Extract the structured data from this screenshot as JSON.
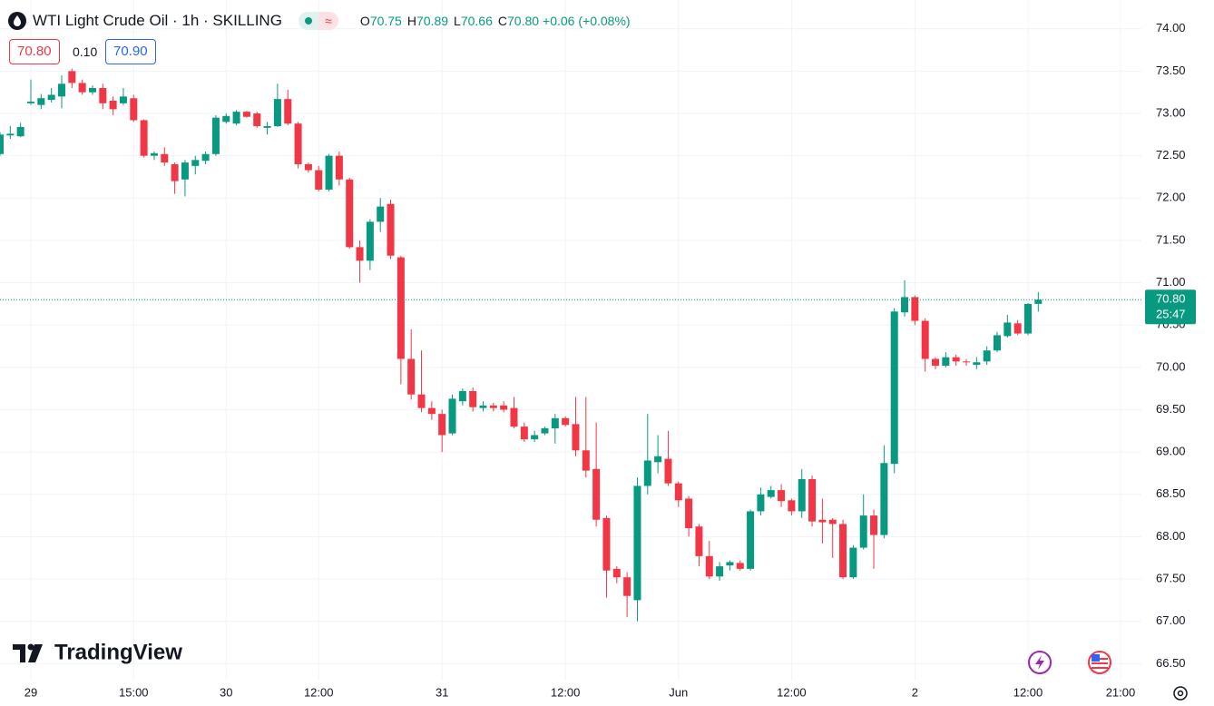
{
  "header": {
    "symbol": "WTI Light Crude Oil · 1h · SKILLING",
    "legend": [
      {
        "label": "O",
        "value": "70.75"
      },
      {
        "label": "H",
        "value": "70.89"
      },
      {
        "label": "L",
        "value": "70.66"
      },
      {
        "label": "C",
        "value": "70.80"
      }
    ],
    "change": "+0.06 (+0.08%)",
    "sell": "70.80",
    "spread": "0.10",
    "buy": "70.90"
  },
  "branding": "TradingView",
  "chart_data": {
    "type": "candlestick",
    "up_color": "#089981",
    "down_color": "#f23645",
    "grid": true,
    "categories": [
      null,
      null,
      null,
      "29",
      null,
      null,
      null,
      null,
      null,
      null,
      null,
      null,
      null,
      "15:00",
      null,
      null,
      null,
      null,
      null,
      null,
      null,
      null,
      "30",
      null,
      null,
      null,
      null,
      null,
      null,
      null,
      null,
      "12:00",
      null,
      null,
      null,
      null,
      null,
      null,
      null,
      null,
      null,
      null,
      null,
      "31",
      null,
      null,
      null,
      null,
      null,
      null,
      null,
      null,
      null,
      null,
      null,
      "12:00",
      null,
      null,
      null,
      null,
      null,
      null,
      null,
      null,
      null,
      null,
      "Jun",
      null,
      null,
      null,
      null,
      null,
      null,
      null,
      null,
      null,
      null,
      "12:00",
      null,
      null,
      null,
      null,
      null,
      null,
      null,
      null,
      null,
      null,
      null,
      "2",
      null,
      null,
      null,
      null,
      null,
      null,
      null,
      null,
      null,
      null,
      "12:00",
      null,
      null,
      null,
      null,
      null,
      null,
      null,
      null,
      "21:00",
      null
    ],
    "open": [
      72.52,
      72.74,
      72.73,
      73.12,
      73.1,
      73.16,
      73.2,
      73.5,
      73.36,
      73.25,
      73.3,
      73.15,
      73.12,
      73.18,
      72.92,
      72.5,
      72.52,
      72.4,
      72.22,
      72.38,
      72.44,
      72.52,
      72.9,
      72.88,
      73.02,
      73.0,
      72.83,
      72.85,
      73.17,
      72.88,
      72.4,
      72.33,
      72.1,
      72.5,
      72.22,
      71.42,
      71.26,
      71.72,
      71.93,
      71.3,
      70.1,
      69.68,
      69.52,
      69.45,
      69.22,
      69.6,
      69.72,
      69.52,
      69.55,
      69.55,
      69.52,
      69.3,
      69.15,
      69.22,
      69.28,
      69.4,
      69.33,
      69.02,
      68.8,
      68.22,
      67.62,
      67.52,
      67.25,
      68.6,
      68.88,
      68.92,
      68.63,
      68.45,
      68.12,
      67.77,
      67.53,
      67.66,
      67.69,
      67.62,
      68.3,
      68.47,
      68.55,
      68.43,
      68.3,
      68.68,
      68.2,
      68.2,
      68.15,
      67.52,
      67.87,
      68.25,
      68.02,
      68.86,
      70.65,
      70.83,
      70.55,
      70.1,
      70.02,
      70.12,
      70.07,
      70.03,
      70.07,
      70.2,
      70.37,
      70.52,
      70.4,
      70.75,
      null,
      null,
      null,
      null,
      null,
      null,
      null,
      null,
      null
    ],
    "high": [
      72.78,
      72.85,
      72.89,
      73.4,
      73.23,
      73.3,
      73.45,
      73.53,
      73.4,
      73.33,
      73.35,
      73.2,
      73.3,
      73.22,
      72.93,
      72.55,
      72.6,
      72.42,
      72.45,
      72.5,
      72.55,
      72.98,
      73.0,
      73.04,
      73.03,
      73.02,
      72.9,
      73.35,
      73.28,
      72.9,
      72.42,
      72.38,
      72.52,
      72.55,
      72.24,
      71.5,
      71.75,
      72.0,
      71.98,
      71.32,
      70.45,
      70.2,
      69.6,
      69.5,
      69.68,
      69.75,
      69.76,
      69.6,
      69.58,
      69.6,
      69.65,
      69.35,
      69.25,
      69.3,
      69.45,
      69.42,
      69.65,
      69.65,
      69.35,
      68.25,
      67.65,
      67.58,
      68.7,
      69.45,
      69.2,
      69.25,
      68.65,
      68.48,
      68.15,
      67.95,
      67.7,
      67.72,
      67.72,
      68.32,
      68.58,
      68.6,
      68.62,
      68.45,
      68.8,
      68.72,
      68.45,
      68.22,
      68.2,
      67.9,
      68.5,
      68.32,
      69.08,
      70.7,
      71.03,
      70.85,
      70.58,
      70.12,
      70.18,
      70.15,
      70.1,
      70.12,
      70.25,
      70.42,
      70.62,
      70.56,
      70.76,
      70.89,
      null,
      null,
      null,
      null,
      null,
      null,
      null,
      null,
      null
    ],
    "low": [
      72.5,
      72.7,
      72.72,
      73.1,
      73.05,
      73.13,
      73.06,
      73.3,
      73.22,
      73.22,
      73.05,
      72.98,
      73.1,
      72.9,
      72.48,
      72.45,
      72.38,
      72.05,
      72.02,
      72.28,
      72.4,
      72.5,
      72.88,
      72.86,
      72.95,
      72.83,
      72.75,
      72.84,
      72.86,
      72.35,
      72.3,
      72.08,
      72.08,
      72.15,
      71.4,
      71.0,
      71.15,
      71.6,
      71.28,
      69.8,
      69.62,
      69.47,
      69.38,
      69.0,
      69.2,
      69.55,
      69.48,
      69.48,
      69.48,
      69.47,
      69.28,
      69.12,
      69.12,
      69.2,
      69.1,
      69.3,
      68.95,
      68.7,
      68.12,
      67.28,
      67.45,
      67.05,
      67.0,
      68.5,
      68.75,
      68.6,
      68.35,
      68.0,
      67.65,
      67.5,
      67.48,
      67.6,
      67.6,
      67.6,
      68.25,
      68.45,
      68.35,
      68.25,
      68.22,
      68.12,
      67.92,
      67.75,
      67.5,
      67.5,
      67.85,
      67.62,
      67.98,
      68.75,
      70.6,
      70.5,
      69.95,
      69.98,
      70.0,
      70.02,
      70.02,
      69.98,
      70.03,
      70.18,
      70.35,
      70.38,
      70.38,
      70.66,
      null,
      null,
      null,
      null,
      null,
      null,
      null,
      null,
      null
    ],
    "close": [
      72.75,
      72.76,
      72.84,
      73.14,
      73.18,
      73.22,
      73.35,
      73.36,
      73.25,
      73.3,
      73.12,
      73.05,
      73.2,
      72.92,
      72.5,
      72.53,
      72.42,
      72.2,
      72.42,
      72.45,
      72.52,
      72.95,
      72.97,
      73.02,
      72.96,
      72.85,
      72.85,
      73.17,
      72.88,
      72.4,
      72.33,
      72.1,
      72.5,
      72.22,
      71.42,
      71.26,
      71.72,
      71.9,
      71.32,
      70.1,
      69.68,
      69.52,
      69.45,
      69.2,
      69.63,
      69.72,
      69.53,
      69.55,
      69.52,
      69.5,
      69.3,
      69.15,
      69.2,
      69.28,
      69.4,
      69.32,
      69.02,
      68.78,
      68.2,
      67.6,
      67.52,
      67.3,
      68.6,
      68.9,
      68.95,
      68.63,
      68.43,
      68.1,
      67.77,
      67.53,
      67.65,
      67.7,
      67.62,
      68.3,
      68.5,
      68.55,
      68.42,
      68.3,
      68.68,
      68.18,
      68.17,
      68.15,
      67.52,
      67.87,
      68.25,
      68.02,
      68.87,
      70.66,
      70.83,
      70.55,
      70.1,
      70.02,
      70.12,
      70.07,
      70.06,
      70.06,
      70.2,
      70.38,
      70.53,
      70.4,
      70.75,
      70.8,
      null,
      null,
      null,
      null,
      null,
      null,
      null,
      null,
      null
    ],
    "ylim": [
      66.3,
      74.34
    ],
    "yticks": [
      {
        "value": 66.5,
        "label": "66.50"
      },
      {
        "value": 67,
        "label": "67.00"
      },
      {
        "value": 67.5,
        "label": "67.50"
      },
      {
        "value": 68,
        "label": "68.00"
      },
      {
        "value": 68.5,
        "label": "68.50"
      },
      {
        "value": 69,
        "label": "69.00"
      },
      {
        "value": 69.5,
        "label": "69.50"
      },
      {
        "value": 70,
        "label": "70.00"
      },
      {
        "value": 70.5,
        "label": "70.50"
      },
      {
        "value": 71,
        "label": "71.00"
      },
      {
        "value": 71.5,
        "label": "71.50"
      },
      {
        "value": 72,
        "label": "72.00"
      },
      {
        "value": 72.5,
        "label": "72.50"
      },
      {
        "value": 73,
        "label": "73.00"
      },
      {
        "value": 73.5,
        "label": "73.50"
      },
      {
        "value": 74,
        "label": "74.00"
      }
    ],
    "last_price": {
      "value": 70.8,
      "label": "70.80",
      "countdown": "25:47"
    }
  }
}
